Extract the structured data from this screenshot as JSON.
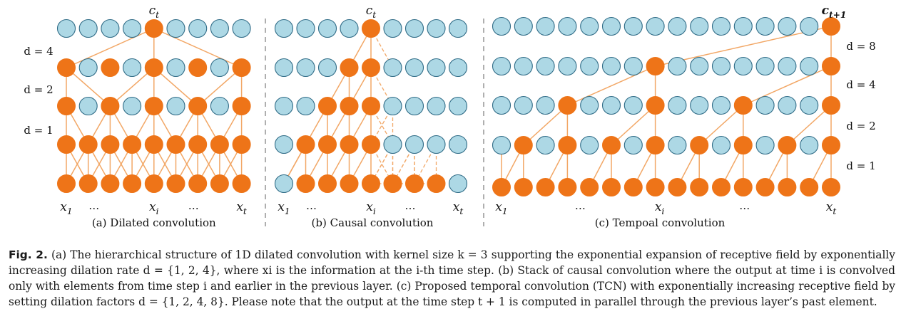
{
  "colors": {
    "active_node": "#ee7418",
    "inactive_node": "#add8e5",
    "node_stroke": "#2f6b86",
    "edge": "#f2a766",
    "separator": "#7a7a7a"
  },
  "panels": [
    {
      "id": "a",
      "caption": "(a)  Dilated convolution",
      "top_label": "c",
      "top_sub": "t",
      "dilation_labels": [
        "d = 4",
        "d = 2",
        "d = 1"
      ],
      "x_labels": [
        {
          "base": "x",
          "sub": "1"
        },
        {
          "base": "…",
          "sub": ""
        },
        {
          "base": "x",
          "sub": "i"
        },
        {
          "base": "…",
          "sub": ""
        },
        {
          "base": "x",
          "sub": "t"
        }
      ]
    },
    {
      "id": "b",
      "caption": "(b) Causal convolution",
      "top_label": "c",
      "top_sub": "t",
      "x_labels": [
        {
          "base": "x",
          "sub": "1"
        },
        {
          "base": "…",
          "sub": ""
        },
        {
          "base": "x",
          "sub": "i"
        },
        {
          "base": "…",
          "sub": ""
        },
        {
          "base": "x",
          "sub": "t"
        }
      ]
    },
    {
      "id": "c",
      "caption": "(c) Tempoal convolution",
      "top_label": "c",
      "top_sub": "t+1",
      "dilation_labels": [
        "d = 8",
        "d = 4",
        "d = 2",
        "d = 1"
      ],
      "x_labels": [
        {
          "base": "x",
          "sub": "1"
        },
        {
          "base": "…",
          "sub": ""
        },
        {
          "base": "x",
          "sub": "i"
        },
        {
          "base": "…",
          "sub": ""
        },
        {
          "base": "x",
          "sub": "t"
        }
      ]
    }
  ],
  "figure_caption": {
    "label": "Fig. 2.",
    "text": "(a) The hierarchical structure of 1D dilated convolution with kernel size k = 3 supporting the exponential expansion of receptive field by exponentially increasing dilation rate d = {1, 2, 4}, where xi is the information at the i-th time step. (b) Stack of causal convolution where the output at time i is convolved only with elements from time step i and earlier in the previous layer. (c) Proposed temporal convolution (TCN) with exponentially increasing receptive field by setting dilation factors d = {1, 2, 4, 8}. Please note that the output at the time step t + 1 is computed in parallel through the previous layer’s past element."
  }
}
